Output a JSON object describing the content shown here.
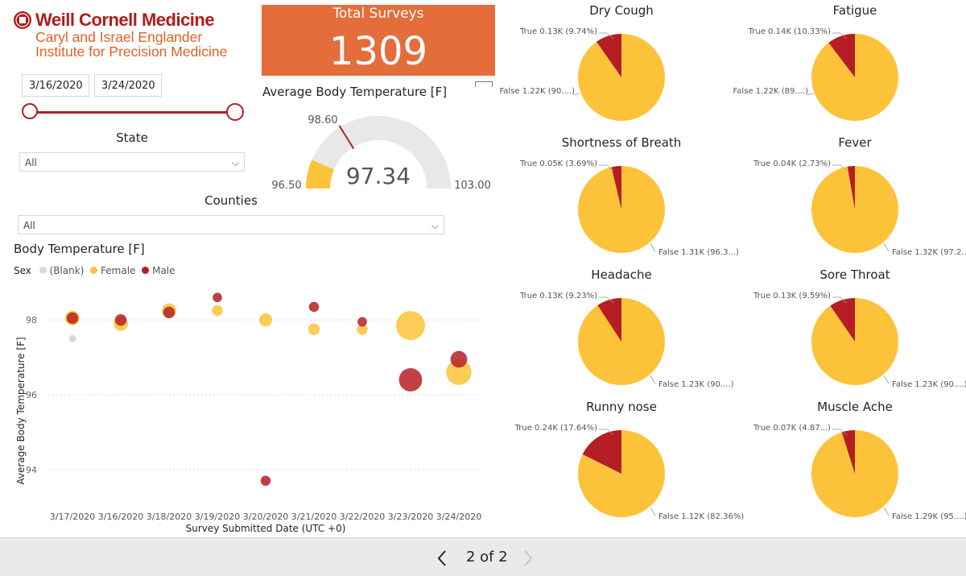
{
  "logo": {
    "title": "Weill Cornell Medicine",
    "sub_line1": "Caryl and Israel Englander",
    "sub_line2": "Institute for Precision Medicine"
  },
  "date_slicer": {
    "start": "3/16/2020",
    "end": "3/24/2020",
    "range": [
      0,
      1
    ]
  },
  "state_slicer": {
    "label": "State",
    "value": "All"
  },
  "counties_slicer": {
    "label": "Counties",
    "value": "All"
  },
  "kpi": {
    "title": "Total Surveys",
    "value": "1309"
  },
  "gauge": {
    "title": "Average Body Temperature [F]",
    "value": 97.34,
    "value_label": "97.34",
    "min": 96.5,
    "min_label": "96.50",
    "max": 103.0,
    "max_label": "103.00",
    "target": 98.6,
    "target_label": "98.60"
  },
  "colors": {
    "female": "#fcc33a",
    "male": "#b51e24",
    "blank": "#d9d9d9",
    "pie_false": "#fcc33a",
    "pie_true": "#b51e24",
    "kpi": "#e46d3b"
  },
  "chart_data": [
    {
      "type": "scatter",
      "title": "Body Temperature [F]",
      "xlabel": "Survey Submitted Date (UTC +0)",
      "ylabel": "Average Body Temperature [F]",
      "legend_title": "Sex",
      "legend": [
        "(Blank)",
        "Female",
        "Male"
      ],
      "categories": [
        "3/17/2020",
        "3/16/2020",
        "3/18/2020",
        "3/19/2020",
        "3/20/2020",
        "3/21/2020",
        "3/22/2020",
        "3/23/2020",
        "3/24/2020"
      ],
      "ylim": [
        93.2,
        98.8
      ],
      "yticks": [
        94,
        96,
        98
      ],
      "grid": true,
      "series": [
        {
          "name": "(Blank)",
          "points": [
            {
              "x": "3/17/2020",
              "y": 97.5,
              "size": 1
            }
          ]
        },
        {
          "name": "Female",
          "points": [
            {
              "x": "3/17/2020",
              "y": 98.05,
              "size": 2
            },
            {
              "x": "3/16/2020",
              "y": 97.9,
              "size": 2
            },
            {
              "x": "3/18/2020",
              "y": 98.25,
              "size": 2
            },
            {
              "x": "3/19/2020",
              "y": 98.25,
              "size": 1.5
            },
            {
              "x": "3/20/2020",
              "y": 98.0,
              "size": 1.8
            },
            {
              "x": "3/21/2020",
              "y": 97.75,
              "size": 1.6
            },
            {
              "x": "3/22/2020",
              "y": 97.75,
              "size": 1.5
            },
            {
              "x": "3/23/2020",
              "y": 97.85,
              "size": 4
            },
            {
              "x": "3/24/2020",
              "y": 96.6,
              "size": 3.5
            }
          ]
        },
        {
          "name": "Male",
          "points": [
            {
              "x": "3/17/2020",
              "y": 98.05,
              "size": 1.6
            },
            {
              "x": "3/16/2020",
              "y": 98.0,
              "size": 1.6
            },
            {
              "x": "3/18/2020",
              "y": 98.2,
              "size": 1.6
            },
            {
              "x": "3/19/2020",
              "y": 98.6,
              "size": 1.3
            },
            {
              "x": "3/20/2020",
              "y": 93.7,
              "size": 1.4
            },
            {
              "x": "3/21/2020",
              "y": 98.35,
              "size": 1.4
            },
            {
              "x": "3/22/2020",
              "y": 97.95,
              "size": 1.3
            },
            {
              "x": "3/23/2020",
              "y": 96.4,
              "size": 3.2
            },
            {
              "x": "3/24/2020",
              "y": 96.95,
              "size": 2.3
            }
          ]
        }
      ]
    },
    {
      "type": "pie",
      "title": "Dry Cough",
      "true_label": "True 0.13K (9.74%)",
      "false_label": "False 1.22K (90....)",
      "true_pct": 9.74
    },
    {
      "type": "pie",
      "title": "Fatigue",
      "true_label": "True 0.14K (10.33%)",
      "false_label": "False 1.22K (89....)",
      "true_pct": 10.33
    },
    {
      "type": "pie",
      "title": "Shortness of Breath",
      "true_label": "True 0.05K (3.69%)",
      "false_label": "False 1.31K (96.3...)",
      "true_pct": 3.69
    },
    {
      "type": "pie",
      "title": "Fever",
      "true_label": "True 0.04K (2.73%)",
      "false_label": "False 1.32K (97.2...)",
      "true_pct": 2.73
    },
    {
      "type": "pie",
      "title": "Headache",
      "true_label": "True 0.13K (9.23%)",
      "false_label": "False 1.23K (90....)",
      "true_pct": 9.23
    },
    {
      "type": "pie",
      "title": "Sore Throat",
      "true_label": "True 0.13K (9.59%)",
      "false_label": "False 1.23K (90....)",
      "true_pct": 9.59
    },
    {
      "type": "pie",
      "title": "Runny nose",
      "true_label": "True 0.24K (17.64%)",
      "false_label": "False 1.12K (82.36%)",
      "true_pct": 17.64
    },
    {
      "type": "pie",
      "title": "Muscle Ache",
      "true_label": "True 0.07K (4.87...)",
      "false_label": "False 1.29K (95....)",
      "true_pct": 4.87
    }
  ],
  "pager": {
    "label": "2 of 2",
    "prev_icon": "chevron-left-icon",
    "next_icon": "chevron-right-icon"
  }
}
